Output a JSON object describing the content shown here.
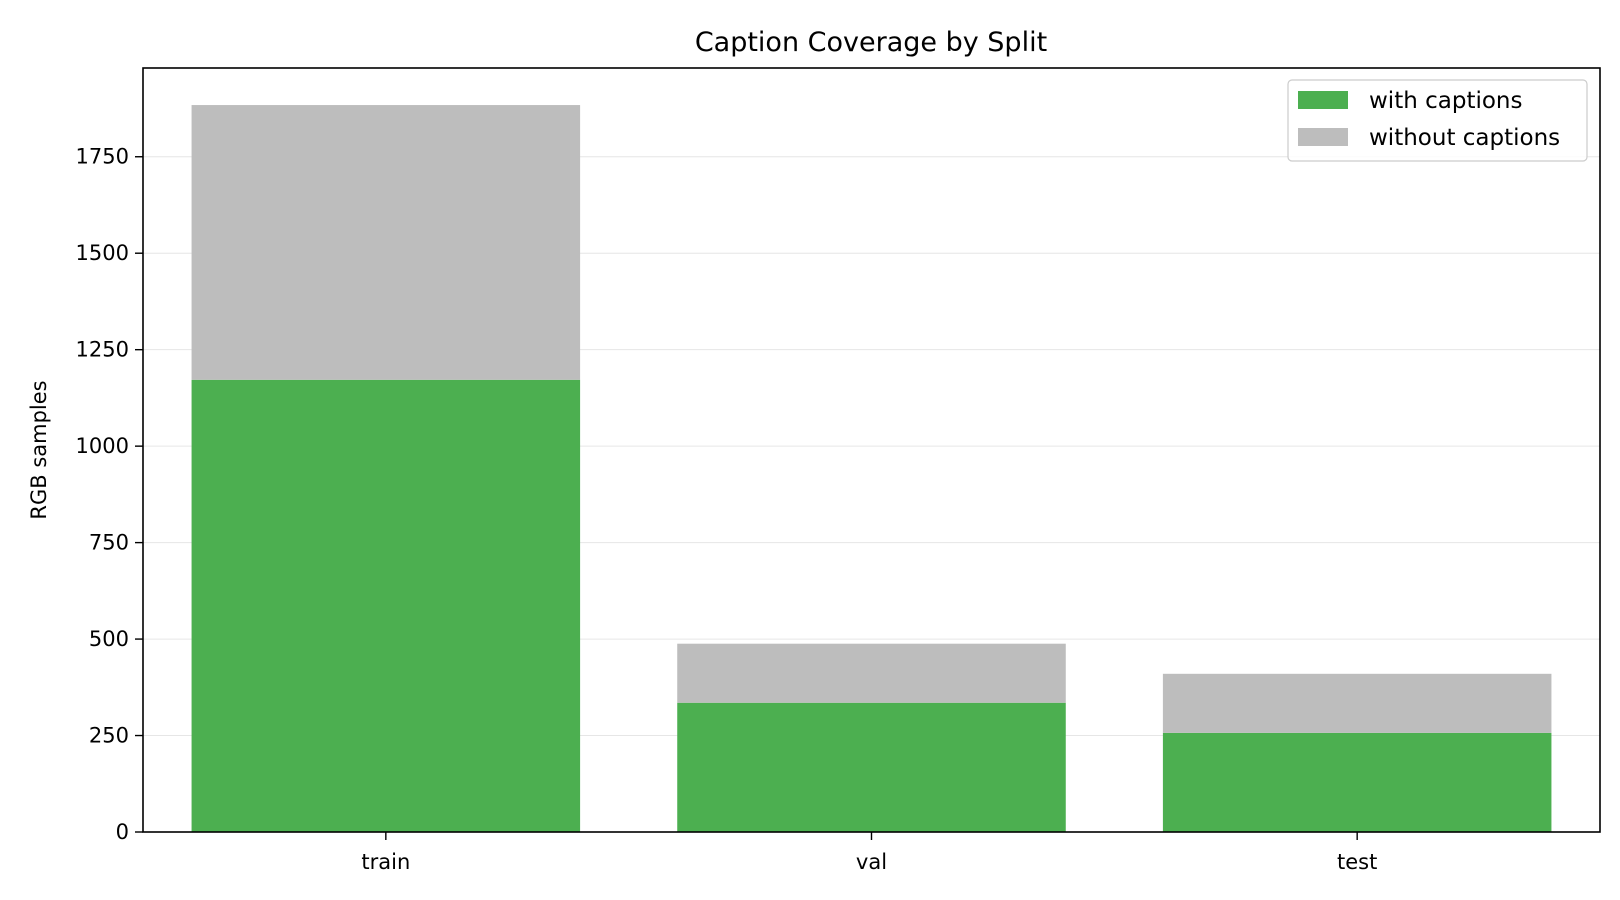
{
  "chart_data": {
    "type": "bar",
    "stacked": true,
    "title": "Caption Coverage by Split",
    "xlabel": "",
    "ylabel": "RGB samples",
    "categories": [
      "train",
      "val",
      "test"
    ],
    "series": [
      {
        "name": "with captions",
        "color": "#4caf50",
        "values": [
          1172,
          335,
          257
        ]
      },
      {
        "name": "without captions",
        "color": "#bdbdbd",
        "values": [
          712,
          153,
          153
        ]
      }
    ],
    "ylim": [
      0,
      1980
    ],
    "yticks": [
      0,
      250,
      500,
      750,
      1000,
      1250,
      1500,
      1750
    ],
    "ytick_labels": [
      "0",
      "250",
      "500",
      "750",
      "1000",
      "1250",
      "1500",
      "1750"
    ],
    "grid": "y",
    "legend_position": "top-right"
  }
}
